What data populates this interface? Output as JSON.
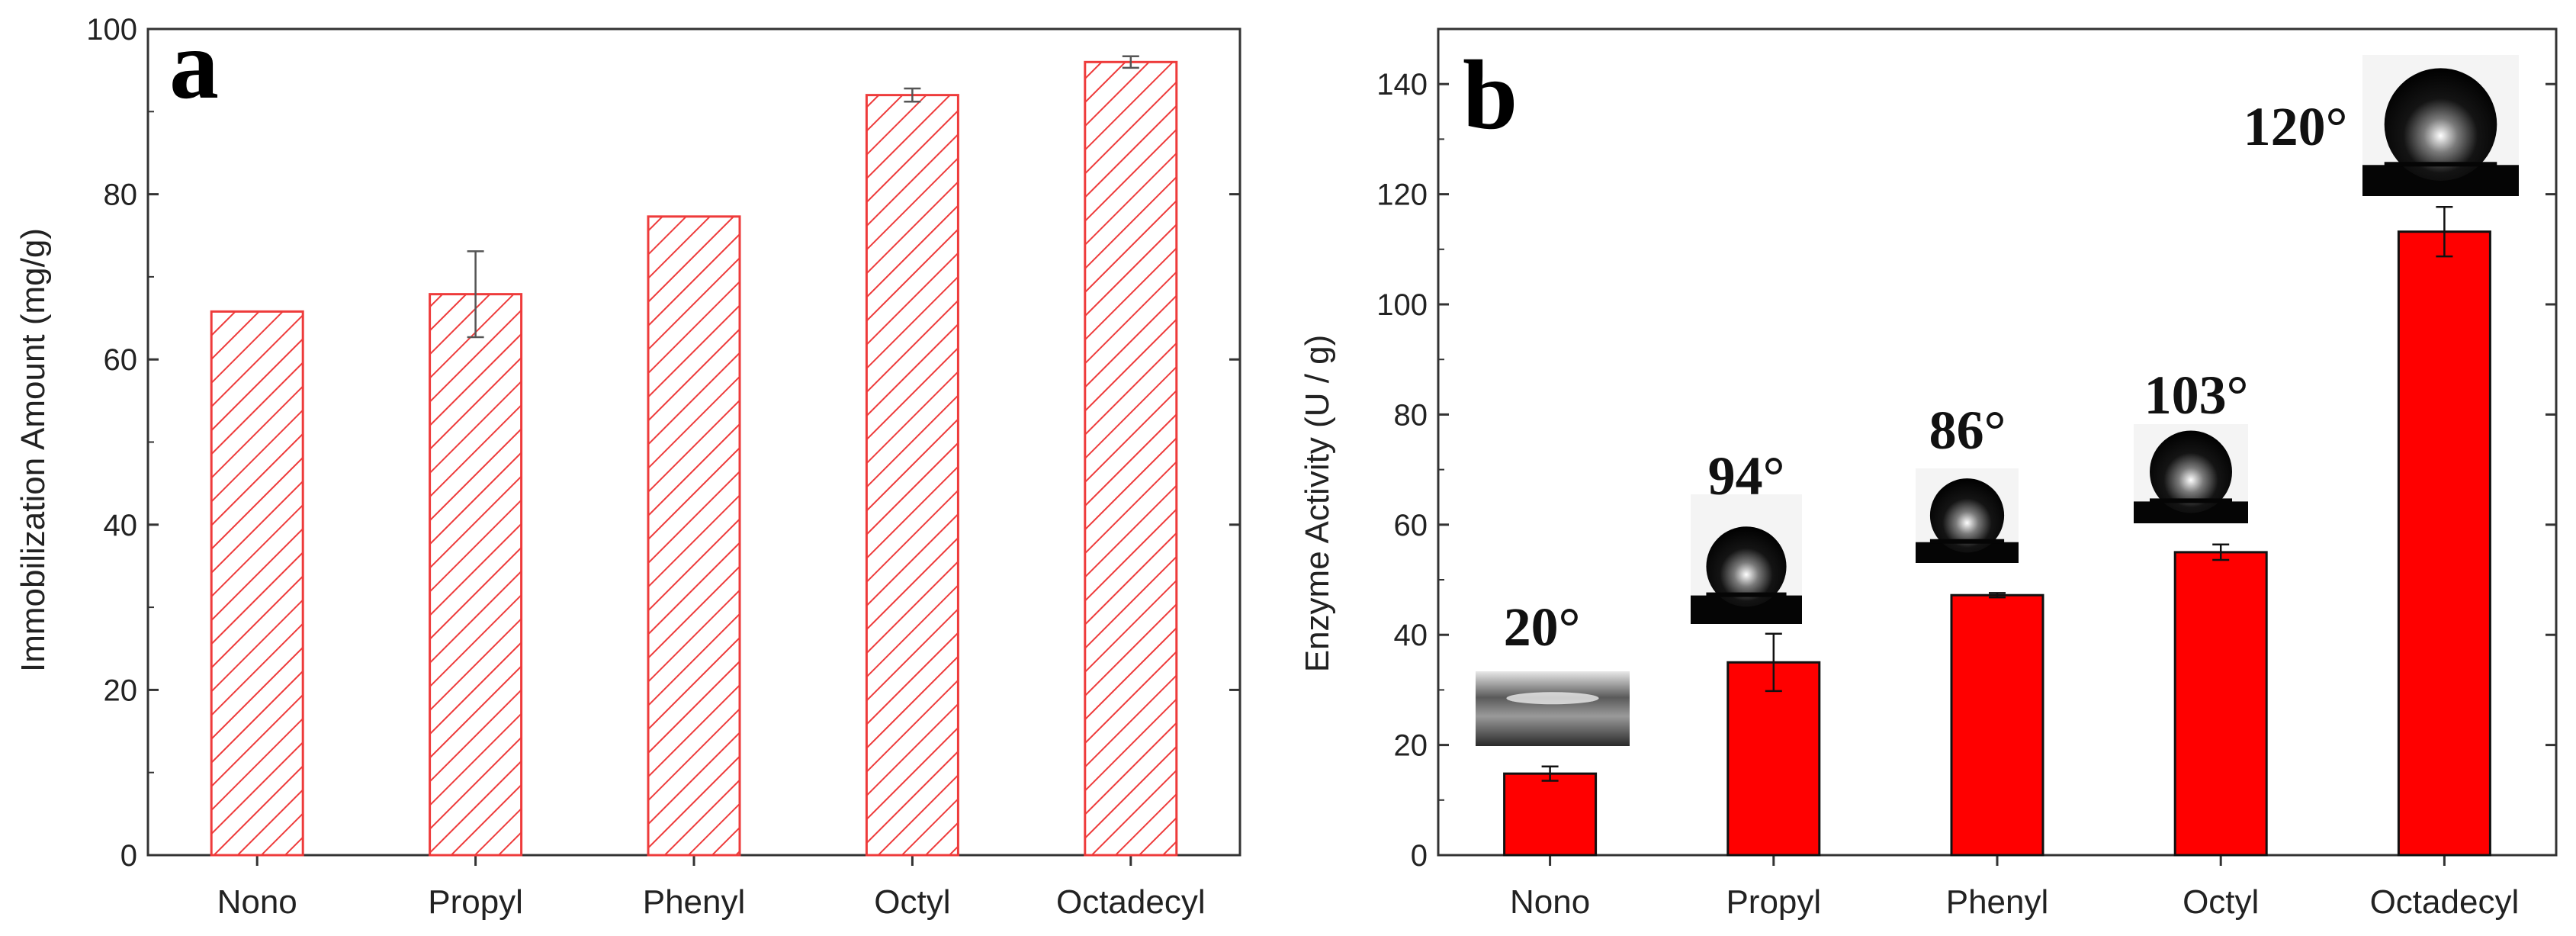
{
  "chart_data": [
    {
      "type": "bar",
      "panel_label": "a",
      "categories": [
        "Nono",
        "Propyl",
        "Phenyl",
        "Octyl",
        "Octadecyl"
      ],
      "values": [
        65.8,
        67.9,
        77.3,
        92.0,
        96.0
      ],
      "errors": [
        0,
        5.2,
        0,
        0.8,
        0.7
      ],
      "ylabel": "Immobilization Amount (mg/g)",
      "xlabel": "",
      "ylim": [
        0,
        100
      ],
      "yticks": [
        "0",
        "20",
        "40",
        "60",
        "80",
        "100"
      ],
      "bar_style": "hatched",
      "bar_color": "#ee3b3b",
      "grid": false
    },
    {
      "type": "bar",
      "panel_label": "b",
      "categories": [
        "Nono",
        "Propyl",
        "Phenyl",
        "Octyl",
        "Octadecyl"
      ],
      "values": [
        14.8,
        35.0,
        47.2,
        55.0,
        113.2
      ],
      "errors": [
        1.3,
        5.2,
        0.4,
        1.4,
        4.5
      ],
      "ylabel": "Enzyme Activity (U / g)",
      "xlabel": "",
      "ylim": [
        0,
        150
      ],
      "yticks": [
        "0",
        "20",
        "40",
        "60",
        "80",
        "100",
        "120",
        "140"
      ],
      "bar_style": "solid",
      "bar_color": "#ff0000",
      "grid": false,
      "annotations": [
        "20°",
        "94°",
        "86°",
        "103°",
        "120°"
      ]
    }
  ]
}
